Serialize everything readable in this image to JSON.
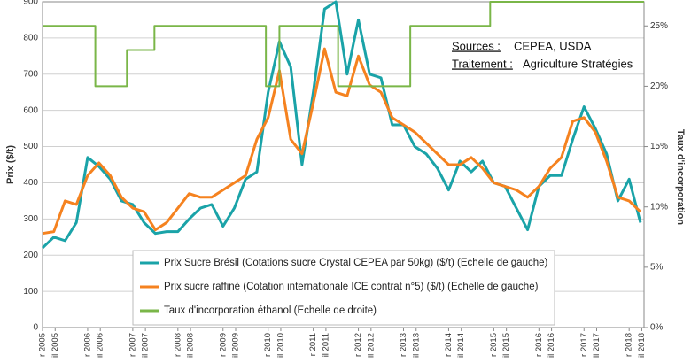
{
  "chart_data": {
    "type": "line",
    "y_label": "Prix ($/t)",
    "y2_label": "Taux d'incorporation",
    "annotations": [
      {
        "label": "Sources :",
        "text": "CEPEA, USDA"
      },
      {
        "label": "Traitement :",
        "text": "Agriculture Stratégies"
      }
    ],
    "xlim": [
      2005,
      2018.33
    ],
    "xticks": [
      {
        "value": 2005,
        "label": "r 2005"
      },
      {
        "value": 2005.28,
        "label": "il 2005"
      },
      {
        "value": 2006,
        "label": "r 2006"
      },
      {
        "value": 2006.28,
        "label": "il 2006"
      },
      {
        "value": 2007,
        "label": "r 2007"
      },
      {
        "value": 2007.28,
        "label": "il 2007"
      },
      {
        "value": 2008,
        "label": "r 2008"
      },
      {
        "value": 2008.28,
        "label": "il 2008"
      },
      {
        "value": 2009,
        "label": "r 2009"
      },
      {
        "value": 2009.28,
        "label": "il 2009"
      },
      {
        "value": 2010,
        "label": "r 2010"
      },
      {
        "value": 2010.28,
        "label": "il 2010"
      },
      {
        "value": 2011,
        "label": "r 2011"
      },
      {
        "value": 2011.28,
        "label": "il 2011"
      },
      {
        "value": 2012,
        "label": "r 2012"
      },
      {
        "value": 2012.28,
        "label": "il 2012"
      },
      {
        "value": 2013,
        "label": "r 2013"
      },
      {
        "value": 2013.28,
        "label": "il 2013"
      },
      {
        "value": 2014,
        "label": "r 2014"
      },
      {
        "value": 2014.28,
        "label": "il 2014"
      },
      {
        "value": 2015,
        "label": "r 2015"
      },
      {
        "value": 2015.28,
        "label": "il 2015"
      },
      {
        "value": 2016,
        "label": "r 2016"
      },
      {
        "value": 2016.28,
        "label": "il 2016"
      },
      {
        "value": 2017,
        "label": "r 2017"
      },
      {
        "value": 2017.28,
        "label": "il 2017"
      },
      {
        "value": 2018,
        "label": "r 2018"
      },
      {
        "value": 2018.28,
        "label": "il 2018"
      }
    ],
    "ylim": [
      0,
      900
    ],
    "yticks": [
      0,
      100,
      200,
      300,
      400,
      500,
      600,
      700,
      800,
      900
    ],
    "y2lim": [
      0,
      27
    ],
    "y2ticks": [
      {
        "value": 0,
        "label": "0%"
      },
      {
        "value": 5,
        "label": "5%"
      },
      {
        "value": 10,
        "label": "10%"
      },
      {
        "value": 15,
        "label": "15%"
      },
      {
        "value": 20,
        "label": "20%"
      },
      {
        "value": 25,
        "label": "25%"
      }
    ],
    "grid": true,
    "x": [
      2005,
      2005.25,
      2005.5,
      2005.75,
      2006,
      2006.25,
      2006.5,
      2006.75,
      2007,
      2007.25,
      2007.5,
      2007.75,
      2008,
      2008.25,
      2008.5,
      2008.75,
      2009,
      2009.25,
      2009.5,
      2009.75,
      2010,
      2010.25,
      2010.5,
      2010.75,
      2011,
      2011.25,
      2011.5,
      2011.75,
      2012,
      2012.25,
      2012.5,
      2012.75,
      2013,
      2013.25,
      2013.5,
      2013.75,
      2014,
      2014.25,
      2014.5,
      2014.75,
      2015,
      2015.25,
      2015.5,
      2015.75,
      2016,
      2016.25,
      2016.5,
      2016.75,
      2017,
      2017.25,
      2017.5,
      2017.75,
      2018,
      2018.25
    ],
    "series": [
      {
        "name": "Prix Sucre Brésil (Cotations sucre Crystal CEPEA par 50kg) ($/t) (Echelle de gauche)",
        "color": "#1aa3a8",
        "values": [
          220,
          250,
          240,
          290,
          470,
          445,
          410,
          350,
          340,
          290,
          260,
          265,
          265,
          300,
          330,
          340,
          280,
          330,
          410,
          430,
          650,
          790,
          720,
          450,
          650,
          880,
          900,
          700,
          850,
          700,
          690,
          560,
          560,
          500,
          480,
          440,
          380,
          460,
          430,
          460,
          400,
          390,
          330,
          270,
          390,
          420,
          420,
          520,
          610,
          550,
          480,
          350,
          410,
          290
        ]
      },
      {
        "name": "Prix sucre raffiné (Cotation internationale ICE contrat n°5) ($/t) (Echelle de gauche)",
        "color": "#f5821f",
        "values": [
          260,
          265,
          350,
          340,
          420,
          455,
          420,
          360,
          330,
          320,
          270,
          290,
          330,
          370,
          360,
          360,
          380,
          400,
          420,
          520,
          580,
          710,
          520,
          480,
          620,
          770,
          650,
          640,
          750,
          670,
          650,
          580,
          560,
          540,
          510,
          480,
          450,
          450,
          470,
          440,
          400,
          390,
          380,
          360,
          390,
          440,
          470,
          570,
          580,
          540,
          460,
          360,
          350,
          320
        ]
      },
      {
        "name": "Taux d'incorporation éthanol (Echelle de droite)",
        "color": "#7ab648",
        "axis": "y2",
        "x": [
          2005,
          2006.17,
          2006.17,
          2006.87,
          2006.87,
          2007.48,
          2007.48,
          2009.95,
          2009.95,
          2010.25,
          2010.25,
          2011.55,
          2011.55,
          2013.15,
          2013.15,
          2014.92,
          2014.92,
          2018.33
        ],
        "values": [
          25,
          25,
          20,
          20,
          23,
          23,
          25,
          25,
          20,
          20,
          25,
          25,
          20,
          20,
          25,
          25,
          27,
          27
        ]
      }
    ]
  }
}
